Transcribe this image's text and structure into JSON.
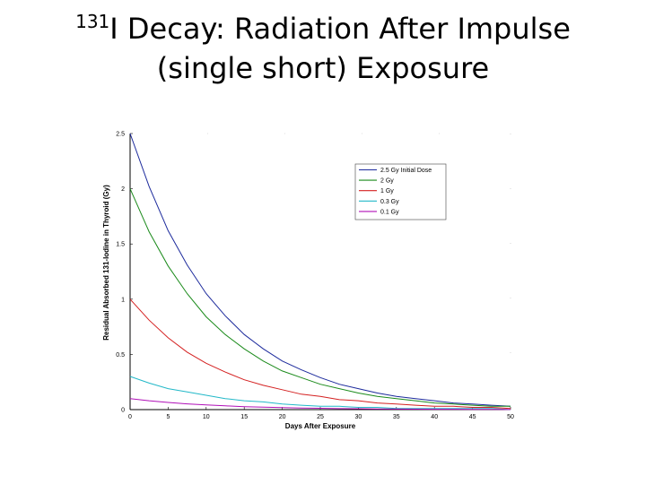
{
  "slide": {
    "title_superscript": "131",
    "title_line1_rest": "I Decay: Radiation After Impulse",
    "title_line2": "(single short) Exposure"
  },
  "chart_data": {
    "type": "line",
    "xlabel": "Days After Exposure",
    "ylabel": "Residual Absorbed 131-Iodine in Thyroid (Gy)",
    "xlim": [
      0,
      50
    ],
    "ylim": [
      0,
      2.5
    ],
    "xticks": [
      0,
      5,
      10,
      15,
      20,
      25,
      30,
      35,
      40,
      45,
      50
    ],
    "yticks": [
      0,
      0.5,
      1,
      1.5,
      2,
      2.5
    ],
    "grid": false,
    "legend_position": "top-right",
    "x": [
      0,
      2.5,
      5,
      7.5,
      10,
      12.5,
      15,
      17.5,
      20,
      22.5,
      25,
      27.5,
      30,
      32.5,
      35,
      37.5,
      40,
      42.5,
      45,
      47.5,
      50
    ],
    "series": [
      {
        "name": "2.5 Gy Initial Dose",
        "color": "#1c2a9c",
        "values": [
          2.5,
          2.02,
          1.62,
          1.31,
          1.05,
          0.85,
          0.68,
          0.55,
          0.44,
          0.36,
          0.29,
          0.23,
          0.19,
          0.15,
          0.12,
          0.1,
          0.08,
          0.06,
          0.05,
          0.04,
          0.03
        ]
      },
      {
        "name": "2 Gy",
        "color": "#1a8a1a",
        "values": [
          2.0,
          1.61,
          1.3,
          1.05,
          0.84,
          0.68,
          0.55,
          0.44,
          0.35,
          0.29,
          0.23,
          0.19,
          0.15,
          0.12,
          0.1,
          0.08,
          0.06,
          0.05,
          0.04,
          0.03,
          0.03
        ]
      },
      {
        "name": "1 Gy",
        "color": "#d42020",
        "values": [
          1.0,
          0.81,
          0.65,
          0.52,
          0.42,
          0.34,
          0.27,
          0.22,
          0.18,
          0.14,
          0.12,
          0.09,
          0.08,
          0.06,
          0.05,
          0.04,
          0.03,
          0.03,
          0.02,
          0.02,
          0.01
        ]
      },
      {
        "name": "0.3 Gy",
        "color": "#22b8c8",
        "values": [
          0.3,
          0.24,
          0.19,
          0.16,
          0.13,
          0.1,
          0.08,
          0.07,
          0.05,
          0.04,
          0.03,
          0.03,
          0.02,
          0.02,
          0.01,
          0.01,
          0.01,
          0.01,
          0.01,
          0.01,
          0.0
        ]
      },
      {
        "name": "0.1 Gy",
        "color": "#b010b8",
        "values": [
          0.1,
          0.08,
          0.065,
          0.052,
          0.042,
          0.034,
          0.027,
          0.022,
          0.018,
          0.014,
          0.012,
          0.009,
          0.008,
          0.006,
          0.005,
          0.004,
          0.003,
          0.003,
          0.002,
          0.002,
          0.001
        ]
      }
    ]
  }
}
